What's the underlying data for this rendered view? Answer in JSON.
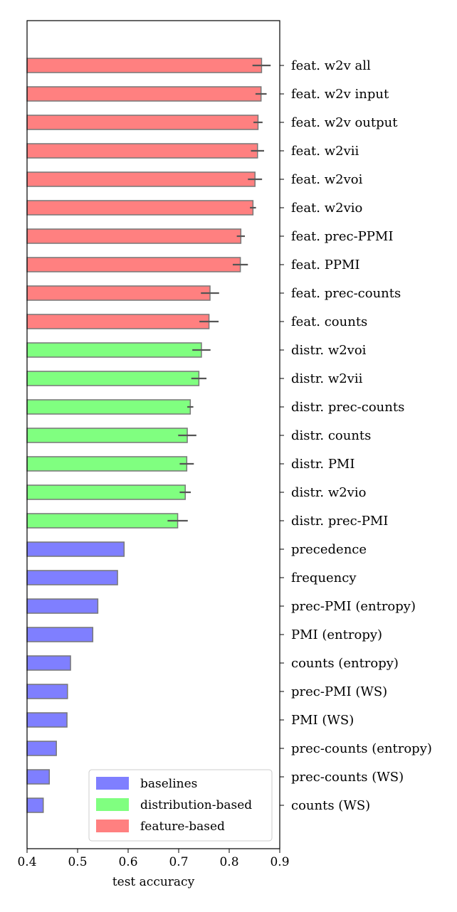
{
  "chart_data": {
    "type": "bar",
    "orientation": "horizontal",
    "xlabel": "test accuracy",
    "xlim": [
      0.4,
      0.9
    ],
    "xticks": [
      "0.4",
      "0.5",
      "0.6",
      "0.7",
      "0.8",
      "0.9"
    ],
    "category_label_side": "right",
    "grid": false,
    "legend_position": "lower center",
    "colors": {
      "baselines": "#7f7fff",
      "distribution-based": "#80ff80",
      "feature-based": "#ff8080",
      "bar_edge": "#777777",
      "error_bar": "#555555"
    },
    "legend": [
      {
        "name": "baselines",
        "group": "baselines"
      },
      {
        "name": "distribution-based",
        "group": "distribution-based"
      },
      {
        "name": "feature-based",
        "group": "feature-based"
      }
    ],
    "bars": [
      {
        "category": "feat. w2v all",
        "value": 0.864,
        "error": 0.018,
        "group": "feature-based"
      },
      {
        "category": "feat. w2v input",
        "value": 0.863,
        "error": 0.011,
        "group": "feature-based"
      },
      {
        "category": "feat. w2v output",
        "value": 0.857,
        "error": 0.009,
        "group": "feature-based"
      },
      {
        "category": "feat. w2vii",
        "value": 0.856,
        "error": 0.013,
        "group": "feature-based"
      },
      {
        "category": "feat. w2voi",
        "value": 0.851,
        "error": 0.014,
        "group": "feature-based"
      },
      {
        "category": "feat. w2vio",
        "value": 0.847,
        "error": 0.006,
        "group": "feature-based"
      },
      {
        "category": "feat. prec-PPMI",
        "value": 0.823,
        "error": 0.008,
        "group": "feature-based"
      },
      {
        "category": "feat. PPMI",
        "value": 0.822,
        "error": 0.015,
        "group": "feature-based"
      },
      {
        "category": "feat. prec-counts",
        "value": 0.762,
        "error": 0.018,
        "group": "feature-based"
      },
      {
        "category": "feat. counts",
        "value": 0.76,
        "error": 0.019,
        "group": "feature-based"
      },
      {
        "category": "distr. w2voi",
        "value": 0.745,
        "error": 0.018,
        "group": "distribution-based"
      },
      {
        "category": "distr. w2vii",
        "value": 0.74,
        "error": 0.015,
        "group": "distribution-based"
      },
      {
        "category": "distr. prec-counts",
        "value": 0.723,
        "error": 0.006,
        "group": "distribution-based"
      },
      {
        "category": "distr. counts",
        "value": 0.717,
        "error": 0.018,
        "group": "distribution-based"
      },
      {
        "category": "distr. PMI",
        "value": 0.716,
        "error": 0.014,
        "group": "distribution-based"
      },
      {
        "category": "distr. w2vio",
        "value": 0.713,
        "error": 0.011,
        "group": "distribution-based"
      },
      {
        "category": "distr. prec-PMI",
        "value": 0.698,
        "error": 0.02,
        "group": "distribution-based"
      },
      {
        "category": "precedence",
        "value": 0.592,
        "error": 0,
        "group": "baselines"
      },
      {
        "category": "frequency",
        "value": 0.579,
        "error": 0,
        "group": "baselines"
      },
      {
        "category": "prec-PMI (entropy)",
        "value": 0.54,
        "error": 0,
        "group": "baselines"
      },
      {
        "category": "PMI (entropy)",
        "value": 0.53,
        "error": 0,
        "group": "baselines"
      },
      {
        "category": "counts (entropy)",
        "value": 0.486,
        "error": 0,
        "group": "baselines"
      },
      {
        "category": "prec-PMI (WS)",
        "value": 0.48,
        "error": 0,
        "group": "baselines"
      },
      {
        "category": "PMI (WS)",
        "value": 0.479,
        "error": 0,
        "group": "baselines"
      },
      {
        "category": "prec-counts (entropy)",
        "value": 0.458,
        "error": 0,
        "group": "baselines"
      },
      {
        "category": "prec-counts (WS)",
        "value": 0.444,
        "error": 0,
        "group": "baselines"
      },
      {
        "category": "counts (WS)",
        "value": 0.432,
        "error": 0,
        "group": "baselines"
      }
    ]
  }
}
